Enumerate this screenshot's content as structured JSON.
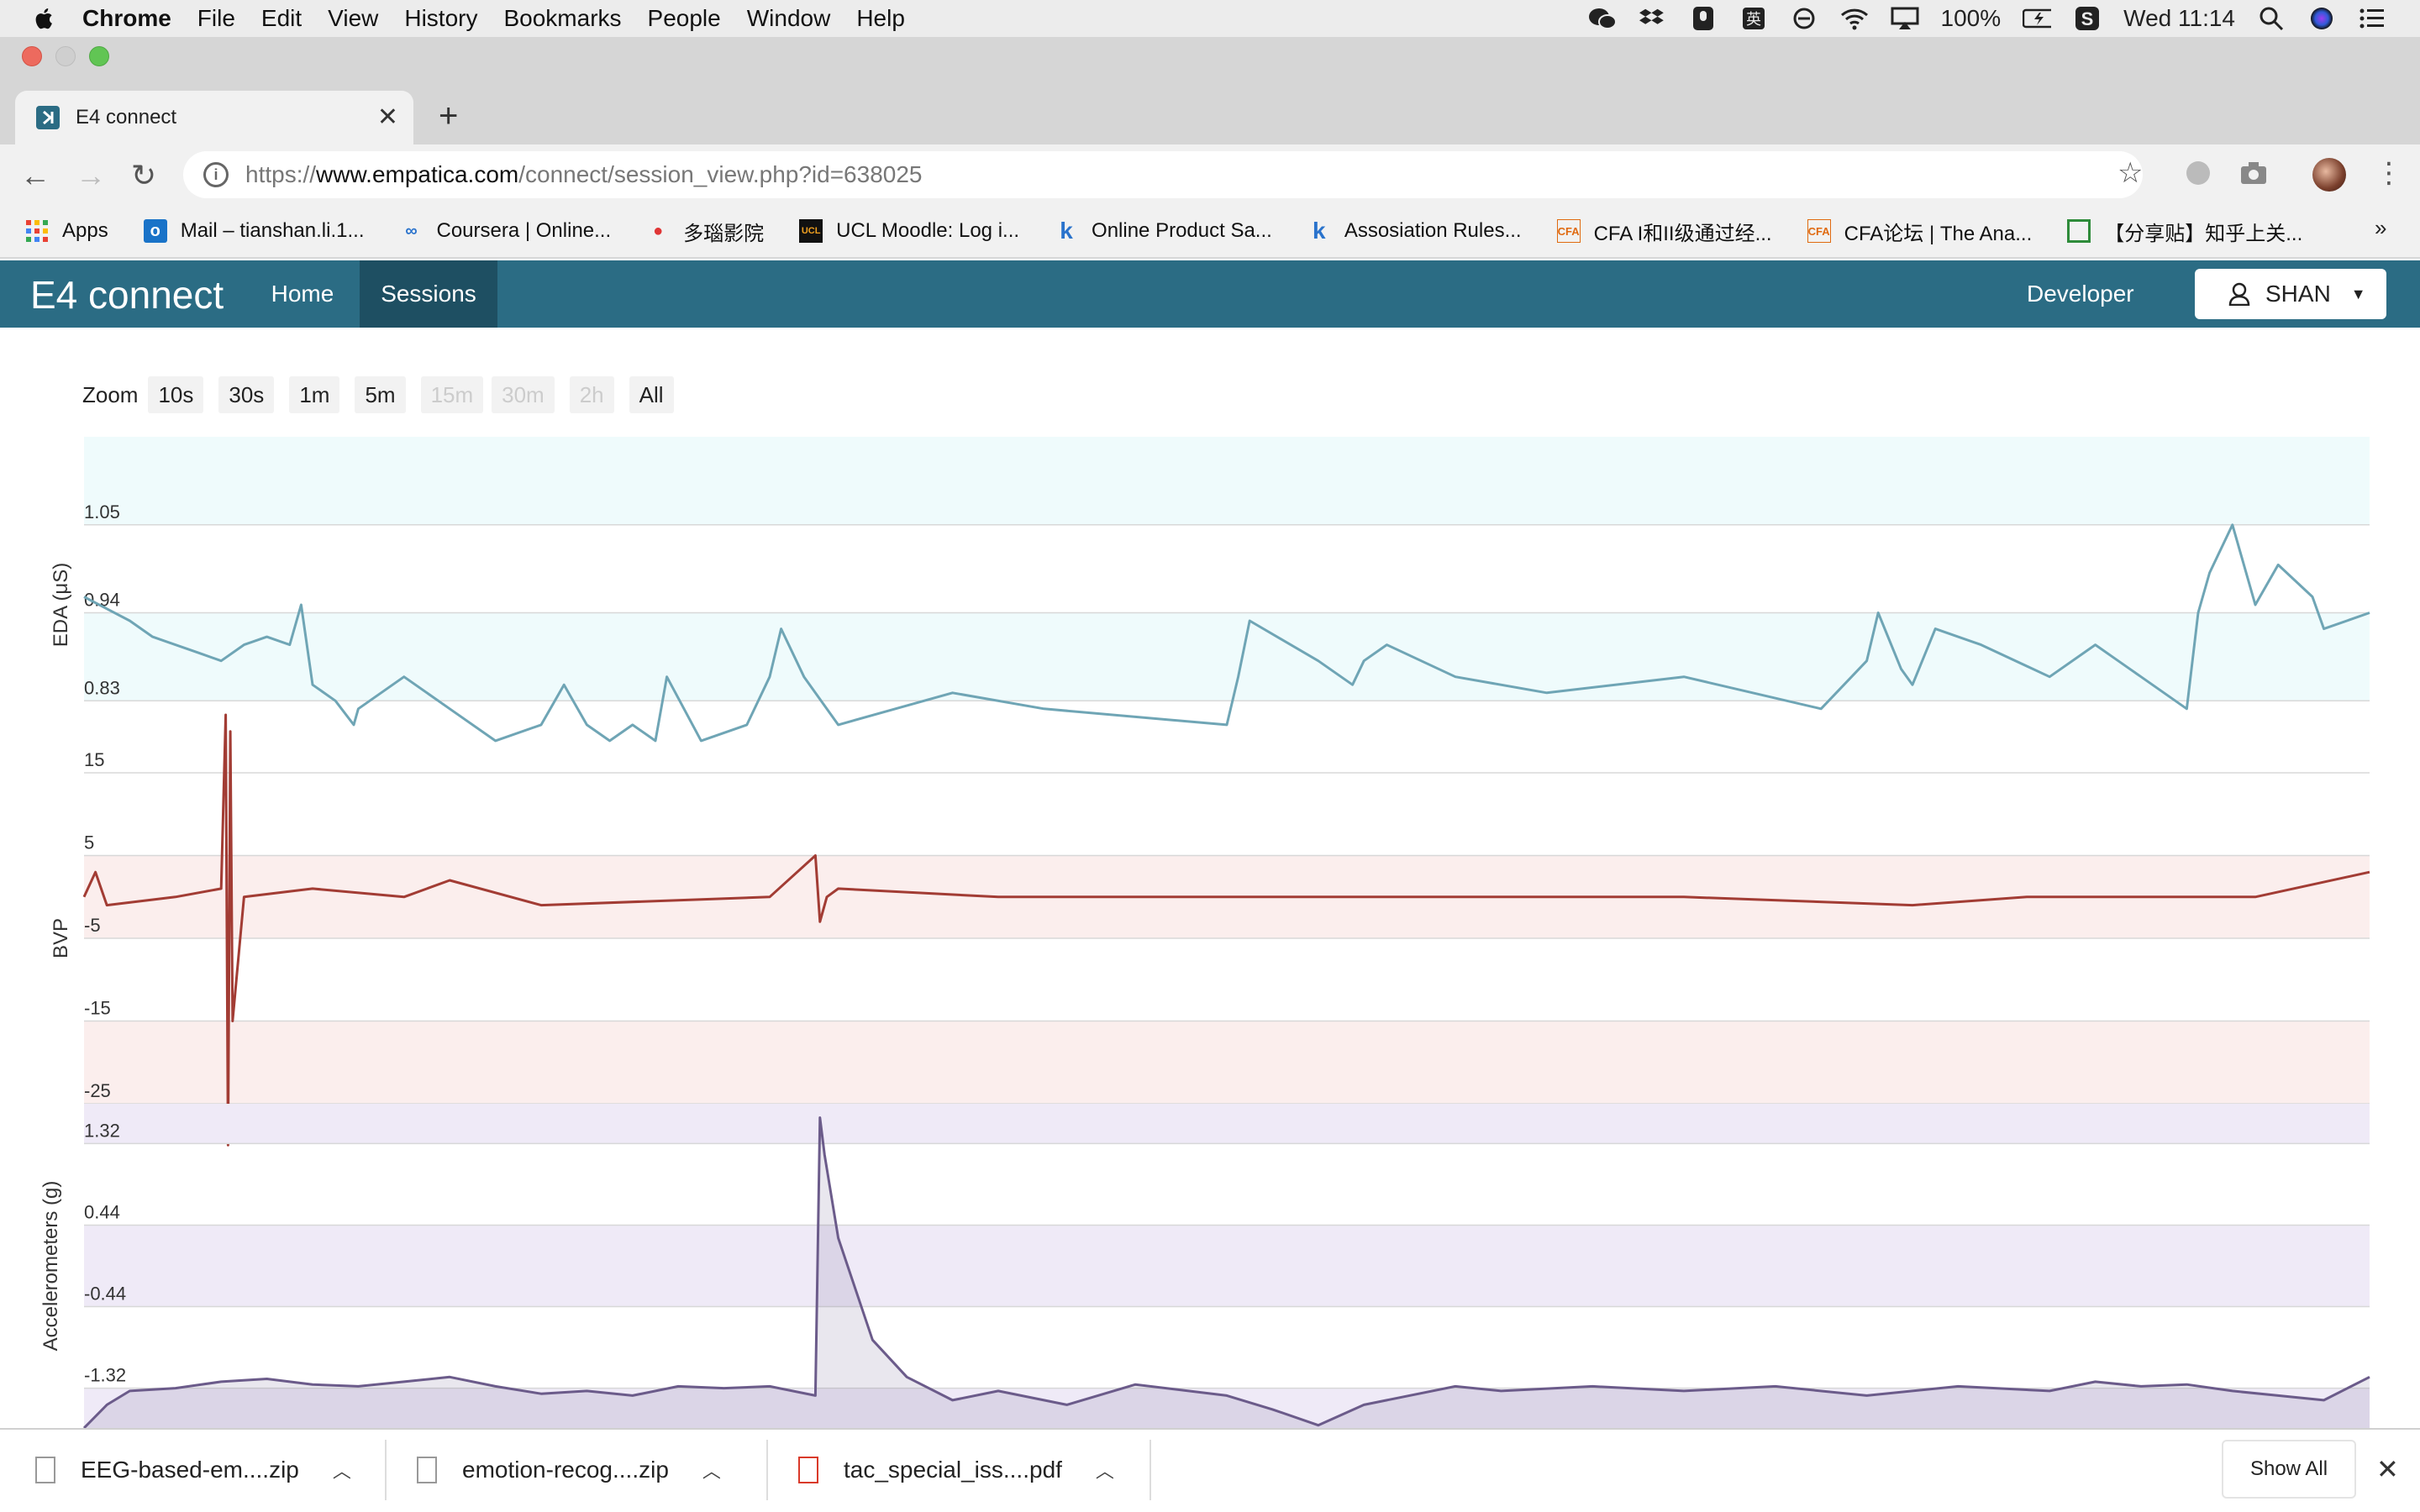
{
  "menubar": {
    "app": "Chrome",
    "items": [
      "File",
      "Edit",
      "View",
      "History",
      "Bookmarks",
      "People",
      "Window",
      "Help"
    ],
    "battery": "100%",
    "clock": "Wed 11:14"
  },
  "browser": {
    "tab_title": "E4 connect",
    "url_prefix": "https://",
    "url_host": "www.empatica.com",
    "url_path": "/connect/session_view.php?id=638025",
    "bookmarks": [
      {
        "label": "Apps",
        "icon": "apps-grid-icon"
      },
      {
        "label": "Mail – tianshan.li.1...",
        "icon": "outlook-icon"
      },
      {
        "label": "Coursera | Online...",
        "icon": "coursera-icon"
      },
      {
        "label": "多瑙影院",
        "icon": "video-icon"
      },
      {
        "label": "UCL Moodle: Log i...",
        "icon": "ucl-icon"
      },
      {
        "label": "Online Product Sa...",
        "icon": "k-icon"
      },
      {
        "label": "Assosiation Rules...",
        "icon": "k-icon"
      },
      {
        "label": "CFA I和II级通过经...",
        "icon": "cfa-icon"
      },
      {
        "label": "CFA论坛 | The Ana...",
        "icon": "cfa-icon"
      },
      {
        "label": "【分享贴】知乎上关...",
        "icon": "share-icon"
      }
    ],
    "more": "»"
  },
  "app": {
    "brand": "E4 connect",
    "nav": {
      "home": "Home",
      "sessions": "Sessions",
      "developer": "Developer"
    },
    "user": "SHAN"
  },
  "zoom": {
    "label": "Zoom",
    "buttons": [
      {
        "label": "10s",
        "enabled": true
      },
      {
        "label": "30s",
        "enabled": true
      },
      {
        "label": "1m",
        "enabled": true
      },
      {
        "label": "5m",
        "enabled": true
      },
      {
        "label": "15m",
        "enabled": false
      },
      {
        "label": "30m",
        "enabled": false
      },
      {
        "label": "2h",
        "enabled": false
      },
      {
        "label": "All",
        "enabled": true
      }
    ]
  },
  "chart_data": {
    "type": "line",
    "grid": true,
    "panels": [
      {
        "name": "EDA",
        "ylabel": "EDA (μS)",
        "ticks": [
          "1.05",
          "0.94",
          "0.83"
        ],
        "ylim": [
          0.74,
          1.16
        ],
        "color": "#6fa5b5",
        "band_color": "#effbfc",
        "x": [
          0,
          20,
          30,
          50,
          60,
          70,
          80,
          90,
          95,
          100,
          110,
          118,
          120,
          140,
          160,
          180,
          200,
          210,
          220,
          230,
          240,
          250,
          255,
          270,
          290,
          300,
          305,
          315,
          330,
          355,
          380,
          420,
          500,
          505,
          510,
          540,
          555,
          560,
          570,
          600,
          640,
          700,
          760,
          780,
          785,
          795,
          800,
          810,
          830,
          860,
          880,
          890,
          900,
          920,
          925,
          930,
          940,
          950,
          960,
          975,
          980,
          1000
        ],
        "y": [
          0.96,
          0.93,
          0.91,
          0.89,
          0.88,
          0.9,
          0.91,
          0.9,
          0.95,
          0.85,
          0.83,
          0.8,
          0.82,
          0.86,
          0.82,
          0.78,
          0.8,
          0.85,
          0.8,
          0.78,
          0.8,
          0.78,
          0.86,
          0.78,
          0.8,
          0.86,
          0.92,
          0.86,
          0.8,
          0.82,
          0.84,
          0.82,
          0.8,
          0.86,
          0.93,
          0.88,
          0.85,
          0.88,
          0.9,
          0.86,
          0.84,
          0.86,
          0.82,
          0.88,
          0.94,
          0.87,
          0.85,
          0.92,
          0.9,
          0.86,
          0.9,
          0.88,
          0.86,
          0.82,
          0.94,
          0.99,
          1.05,
          0.95,
          1.0,
          0.96,
          0.92,
          0.94
        ],
        "notes": []
      },
      {
        "name": "BVP",
        "ylabel": "BVP",
        "ticks": [
          "15",
          "5",
          "-5",
          "-15",
          "-25"
        ],
        "ylim": [
          -25,
          15
        ],
        "color": "#a23c34",
        "band_color": "#fbeeed",
        "x": [
          0,
          5,
          10,
          40,
          60,
          62,
          63,
          64,
          65,
          70,
          100,
          140,
          160,
          200,
          300,
          320,
          322,
          325,
          330,
          400,
          600,
          700,
          800,
          850,
          900,
          950,
          1000
        ],
        "y": [
          0,
          3,
          -1,
          0,
          1,
          22,
          -30,
          20,
          -15,
          0,
          1,
          0,
          2,
          -1,
          0,
          5,
          -3,
          0,
          1,
          0,
          0,
          0,
          -1,
          0,
          0,
          0,
          3
        ],
        "notes": []
      },
      {
        "name": "Accelerometers",
        "ylabel": "Accelerometers (g)",
        "ticks": [
          "1.32",
          "0.44",
          "-0.44",
          "-1.32"
        ],
        "ylim": [
          -1.75,
          1.75
        ],
        "color": "#6b5b8a",
        "band_color": "#efeaf7",
        "x": [
          0,
          10,
          20,
          40,
          60,
          80,
          100,
          120,
          140,
          160,
          180,
          200,
          220,
          240,
          260,
          280,
          300,
          320,
          322,
          324,
          330,
          345,
          360,
          380,
          400,
          430,
          460,
          500,
          520,
          540,
          560,
          600,
          620,
          660,
          700,
          740,
          780,
          820,
          860,
          880,
          900,
          920,
          940,
          960,
          980,
          1000
        ],
        "y": [
          -1.75,
          -1.5,
          -1.35,
          -1.32,
          -1.25,
          -1.22,
          -1.28,
          -1.3,
          -1.25,
          -1.2,
          -1.3,
          -1.38,
          -1.35,
          -1.4,
          -1.3,
          -1.32,
          -1.3,
          -1.4,
          1.6,
          1.2,
          0.3,
          -0.8,
          -1.2,
          -1.45,
          -1.35,
          -1.5,
          -1.28,
          -1.4,
          -1.55,
          -1.72,
          -1.5,
          -1.3,
          -1.35,
          -1.3,
          -1.35,
          -1.3,
          -1.4,
          -1.3,
          -1.35,
          -1.25,
          -1.3,
          -1.28,
          -1.35,
          -1.4,
          -1.45,
          -1.2
        ],
        "notes": []
      }
    ]
  },
  "downloads": [
    {
      "name": "EEG-based-em....zip"
    },
    {
      "name": "emotion-recog....zip"
    },
    {
      "name": "tac_special_iss....pdf"
    }
  ],
  "shelf": {
    "show_all": "Show All",
    "close": "✕"
  }
}
